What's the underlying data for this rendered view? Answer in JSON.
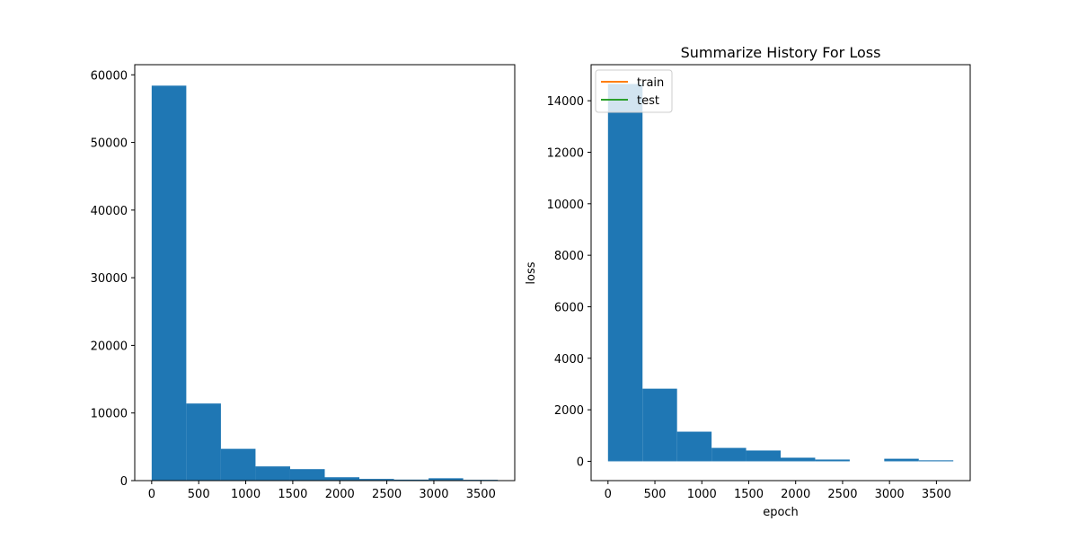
{
  "chart_data": [
    {
      "type": "bar",
      "title": "",
      "xlabel": "",
      "ylabel": "",
      "bin_edges": [
        0,
        368,
        736,
        1104,
        1472,
        1840,
        2208,
        2576,
        2944,
        3312,
        3680
      ],
      "values": [
        58400,
        11400,
        4700,
        2100,
        1700,
        500,
        250,
        150,
        350,
        120
      ],
      "xlim": [
        -180,
        3860
      ],
      "ylim": [
        0,
        61500
      ],
      "xticks": [
        0,
        500,
        1000,
        1500,
        2000,
        2500,
        3000,
        3500
      ],
      "xtick_labels": [
        "0",
        "500",
        "1000",
        "1500",
        "2000",
        "2500",
        "3000",
        "3500"
      ],
      "yticks": [
        0,
        10000,
        20000,
        30000,
        40000,
        50000,
        60000
      ],
      "ytick_labels": [
        "0",
        "10000",
        "20000",
        "30000",
        "40000",
        "50000",
        "60000"
      ],
      "bar_color": "#1f77b4",
      "grid": false
    },
    {
      "type": "bar",
      "title": "Summarize History For Loss",
      "xlabel": "epoch",
      "ylabel": "loss",
      "bin_edges": [
        0,
        368,
        736,
        1104,
        1472,
        1840,
        2208,
        2576,
        2944,
        3312,
        3680
      ],
      "values": [
        14650,
        2820,
        1150,
        520,
        420,
        140,
        70,
        0,
        100,
        40
      ],
      "xlim": [
        -180,
        3860
      ],
      "ylim": [
        -750,
        15400
      ],
      "xticks": [
        0,
        500,
        1000,
        1500,
        2000,
        2500,
        3000,
        3500
      ],
      "xtick_labels": [
        "0",
        "500",
        "1000",
        "1500",
        "2000",
        "2500",
        "3000",
        "3500"
      ],
      "yticks": [
        0,
        2000,
        4000,
        6000,
        8000,
        10000,
        12000,
        14000
      ],
      "ytick_labels": [
        "0",
        "2000",
        "4000",
        "6000",
        "8000",
        "10000",
        "12000",
        "14000"
      ],
      "bar_color": "#1f77b4",
      "grid": false,
      "legend_position": "top-left",
      "legend": [
        {
          "name": "train",
          "color": "#ff7f0e"
        },
        {
          "name": "test",
          "color": "#2ca02c"
        }
      ]
    }
  ]
}
